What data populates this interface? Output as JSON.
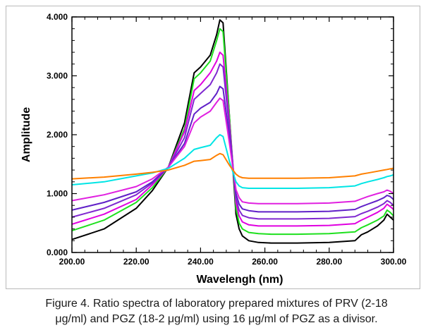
{
  "caption": {
    "line1": "Figure 4. Ratio spectra of laboratory prepared mixtures of PRV (2-18",
    "line2": "μg/ml) and PGZ (18-2 μg/ml) using 16 μg/ml of PGZ as a divisor."
  },
  "chart_data": {
    "type": "line",
    "xlabel": "Wavelengh (nm)",
    "ylabel": "Amplitude",
    "xlim": [
      200,
      300
    ],
    "ylim": [
      0,
      4
    ],
    "xticks": [
      "200.00",
      "220.00",
      "240.00",
      "260.00",
      "280.00",
      "300.00"
    ],
    "yticks": [
      "0.000",
      "1.000",
      "2.000",
      "3.000",
      "4.000"
    ],
    "grid": false,
    "legend": "none",
    "series": [
      {
        "color": "#000000",
        "x": [
          200,
          210,
          220,
          225,
          230,
          235,
          238,
          240,
          243,
          245,
          246,
          247,
          249,
          251,
          252,
          253,
          255,
          258,
          262,
          270,
          280,
          288,
          290,
          292,
          295,
          297,
          298,
          299,
          300
        ],
        "y": [
          0.22,
          0.4,
          0.75,
          1.05,
          1.45,
          2.2,
          3.05,
          3.15,
          3.35,
          3.7,
          3.95,
          3.9,
          2.3,
          0.65,
          0.4,
          0.28,
          0.2,
          0.17,
          0.16,
          0.16,
          0.17,
          0.2,
          0.3,
          0.35,
          0.45,
          0.55,
          0.65,
          0.6,
          0.55
        ]
      },
      {
        "color": "#1ee01e",
        "x": [
          200,
          210,
          220,
          225,
          230,
          235,
          238,
          240,
          243,
          245,
          246,
          247,
          249,
          251,
          252,
          253,
          255,
          258,
          262,
          270,
          280,
          288,
          290,
          292,
          295,
          297,
          298,
          299,
          300
        ],
        "y": [
          0.37,
          0.55,
          0.85,
          1.1,
          1.45,
          2.1,
          2.95,
          3.05,
          3.25,
          3.6,
          3.8,
          3.75,
          2.3,
          0.75,
          0.5,
          0.4,
          0.34,
          0.32,
          0.31,
          0.31,
          0.32,
          0.35,
          0.42,
          0.47,
          0.55,
          0.62,
          0.72,
          0.68,
          0.62
        ]
      },
      {
        "color": "#e000e0",
        "x": [
          200,
          210,
          220,
          225,
          230,
          235,
          238,
          240,
          243,
          245,
          246,
          247,
          249,
          251,
          252,
          253,
          255,
          258,
          262,
          270,
          280,
          288,
          290,
          292,
          295,
          297,
          298,
          299,
          300
        ],
        "y": [
          0.48,
          0.65,
          0.9,
          1.15,
          1.45,
          2.05,
          2.75,
          2.85,
          3.05,
          3.25,
          3.4,
          3.35,
          2.2,
          0.85,
          0.62,
          0.52,
          0.47,
          0.45,
          0.45,
          0.45,
          0.46,
          0.49,
          0.55,
          0.6,
          0.68,
          0.75,
          0.82,
          0.78,
          0.73
        ]
      },
      {
        "color": "#7f28d0",
        "x": [
          200,
          210,
          220,
          225,
          230,
          235,
          238,
          240,
          243,
          245,
          246,
          247,
          249,
          251,
          252,
          253,
          255,
          258,
          262,
          270,
          280,
          288,
          290,
          292,
          295,
          297,
          298,
          299,
          300
        ],
        "y": [
          0.6,
          0.75,
          0.98,
          1.18,
          1.45,
          1.95,
          2.6,
          2.7,
          2.85,
          3.05,
          3.2,
          3.15,
          2.1,
          0.92,
          0.72,
          0.63,
          0.59,
          0.57,
          0.57,
          0.57,
          0.58,
          0.61,
          0.66,
          0.7,
          0.77,
          0.83,
          0.88,
          0.85,
          0.8
        ]
      },
      {
        "color": "#6020c8",
        "x": [
          200,
          210,
          220,
          225,
          230,
          235,
          238,
          240,
          243,
          245,
          246,
          247,
          249,
          251,
          252,
          253,
          255,
          258,
          262,
          270,
          280,
          288,
          290,
          292,
          295,
          297,
          298,
          299,
          300
        ],
        "y": [
          0.72,
          0.85,
          1.03,
          1.2,
          1.45,
          1.85,
          2.35,
          2.45,
          2.55,
          2.7,
          2.82,
          2.78,
          1.95,
          1.0,
          0.82,
          0.74,
          0.71,
          0.69,
          0.69,
          0.69,
          0.7,
          0.73,
          0.78,
          0.82,
          0.88,
          0.93,
          0.97,
          0.95,
          0.9
        ]
      },
      {
        "color": "#e020e0",
        "x": [
          200,
          210,
          220,
          225,
          230,
          235,
          238,
          240,
          243,
          245,
          246,
          247,
          249,
          251,
          252,
          253,
          255,
          258,
          262,
          270,
          280,
          288,
          290,
          292,
          295,
          297,
          298,
          299,
          300
        ],
        "y": [
          0.88,
          0.98,
          1.12,
          1.25,
          1.45,
          1.8,
          2.2,
          2.3,
          2.4,
          2.55,
          2.62,
          2.58,
          1.85,
          1.07,
          0.93,
          0.86,
          0.84,
          0.83,
          0.83,
          0.83,
          0.84,
          0.87,
          0.91,
          0.95,
          1.0,
          1.03,
          1.06,
          1.04,
          1.0
        ]
      },
      {
        "color": "#00e5e5",
        "x": [
          200,
          210,
          220,
          225,
          230,
          235,
          238,
          240,
          243,
          245,
          246,
          247,
          249,
          251,
          252,
          253,
          255,
          258,
          262,
          270,
          280,
          288,
          290,
          292,
          295,
          297,
          298,
          299,
          300
        ],
        "y": [
          1.15,
          1.2,
          1.3,
          1.35,
          1.43,
          1.6,
          1.75,
          1.78,
          1.82,
          1.95,
          2.0,
          1.97,
          1.55,
          1.2,
          1.13,
          1.1,
          1.09,
          1.09,
          1.09,
          1.09,
          1.1,
          1.13,
          1.17,
          1.2,
          1.24,
          1.27,
          1.29,
          1.3,
          1.32
        ]
      },
      {
        "color": "#ff8000",
        "x": [
          200,
          210,
          220,
          225,
          230,
          235,
          238,
          240,
          243,
          245,
          246,
          247,
          249,
          251,
          252,
          253,
          255,
          258,
          262,
          270,
          280,
          288,
          290,
          292,
          295,
          297,
          298,
          299,
          300
        ],
        "y": [
          1.25,
          1.28,
          1.33,
          1.36,
          1.4,
          1.48,
          1.55,
          1.56,
          1.58,
          1.65,
          1.68,
          1.66,
          1.48,
          1.33,
          1.29,
          1.27,
          1.26,
          1.26,
          1.26,
          1.26,
          1.27,
          1.3,
          1.33,
          1.35,
          1.38,
          1.4,
          1.41,
          1.42,
          1.43
        ]
      }
    ]
  }
}
